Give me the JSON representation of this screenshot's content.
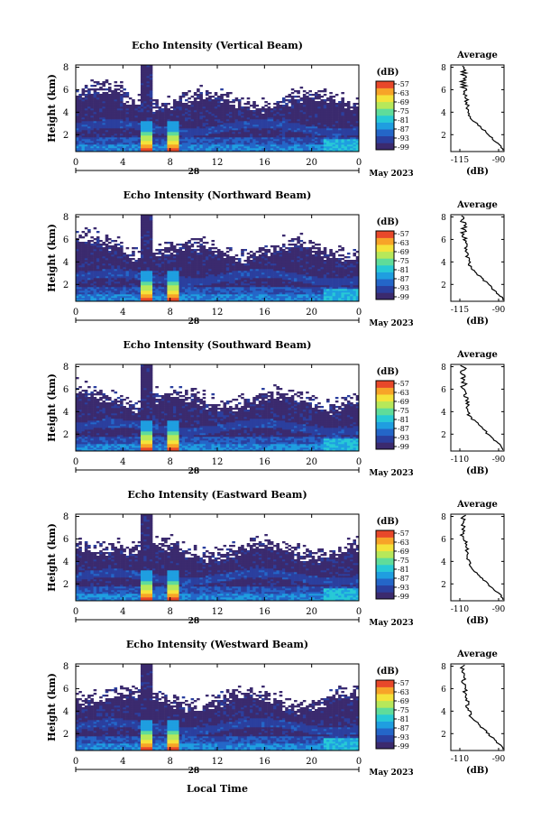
{
  "figure": {
    "date_label": "May 2023",
    "day_label": "28",
    "xlabel_bottom": "Local Time"
  },
  "chart_data": [
    {
      "type": "heatmap",
      "title": "Echo Intensity (Vertical Beam)",
      "ylabel": "Height (km)",
      "xticks": [
        "0",
        "4",
        "8",
        "12",
        "16",
        "20",
        "0"
      ],
      "yticks": [
        "2",
        "4",
        "6",
        "8"
      ],
      "xlim": [
        0,
        24
      ],
      "ylim": [
        0.5,
        8.2
      ],
      "colorbar": {
        "unit": "(dB)",
        "ticks": [
          "-57",
          "-63",
          "-69",
          "-75",
          "-81",
          "-87",
          "-93",
          "-99"
        ],
        "range": [
          -99,
          -57
        ]
      },
      "plumes": [
        6,
        8.3
      ],
      "profile": {
        "title": "Average",
        "xticks": [
          "-115",
          "-90"
        ],
        "xlabel": "(dB)",
        "yticks": [
          "2",
          "4",
          "6",
          "8"
        ]
      }
    },
    {
      "type": "heatmap",
      "title": "Echo Intensity (Northward Beam)",
      "ylabel": "Height (km)",
      "xticks": [
        "0",
        "4",
        "8",
        "12",
        "16",
        "20",
        "0"
      ],
      "yticks": [
        "2",
        "4",
        "6",
        "8"
      ],
      "xlim": [
        0,
        24
      ],
      "ylim": [
        0.5,
        8.2
      ],
      "colorbar": {
        "unit": "(dB)",
        "ticks": [
          "-57",
          "-63",
          "-69",
          "-75",
          "-81",
          "-87",
          "-93",
          "-99"
        ],
        "range": [
          -99,
          -57
        ]
      },
      "plumes": [
        6,
        8.3
      ],
      "profile": {
        "title": "Average",
        "xticks": [
          "-115",
          "-90"
        ],
        "xlabel": "(dB)",
        "yticks": [
          "2",
          "4",
          "6",
          "8"
        ]
      }
    },
    {
      "type": "heatmap",
      "title": "Echo Intensity (Southward Beam)",
      "ylabel": "Height (km)",
      "xticks": [
        "0",
        "4",
        "8",
        "12",
        "16",
        "20",
        "0"
      ],
      "yticks": [
        "2",
        "4",
        "6",
        "8"
      ],
      "xlim": [
        0,
        24
      ],
      "ylim": [
        0.5,
        8.2
      ],
      "colorbar": {
        "unit": "(dB)",
        "ticks": [
          "-57",
          "-63",
          "-69",
          "-75",
          "-81",
          "-87",
          "-93",
          "-99"
        ],
        "range": [
          -99,
          -57
        ]
      },
      "plumes": [
        6,
        8.3
      ],
      "profile": {
        "title": "Average",
        "xticks": [
          "-110",
          "-90"
        ],
        "xlabel": "(dB)",
        "yticks": [
          "2",
          "4",
          "6",
          "8"
        ]
      }
    },
    {
      "type": "heatmap",
      "title": "Echo Intensity (Eastward Beam)",
      "ylabel": "Height (km)",
      "xticks": [
        "0",
        "4",
        "8",
        "12",
        "16",
        "20",
        "0"
      ],
      "yticks": [
        "2",
        "4",
        "6",
        "8"
      ],
      "xlim": [
        0,
        24
      ],
      "ylim": [
        0.5,
        8.2
      ],
      "colorbar": {
        "unit": "(dB)",
        "ticks": [
          "-57",
          "-63",
          "-69",
          "-75",
          "-81",
          "-87",
          "-93",
          "-99"
        ],
        "range": [
          -99,
          -57
        ]
      },
      "plumes": [
        6,
        8.3
      ],
      "profile": {
        "title": "Average",
        "xticks": [
          "-110",
          "-90"
        ],
        "xlabel": "(dB)",
        "yticks": [
          "2",
          "4",
          "6",
          "8"
        ]
      }
    },
    {
      "type": "heatmap",
      "title": "Echo Intensity (Westward Beam)",
      "ylabel": "Height (km)",
      "xticks": [
        "0",
        "4",
        "8",
        "12",
        "16",
        "20",
        "0"
      ],
      "yticks": [
        "2",
        "4",
        "6",
        "8"
      ],
      "xlim": [
        0,
        24
      ],
      "ylim": [
        0.5,
        8.2
      ],
      "colorbar": {
        "unit": "(dB)",
        "ticks": [
          "-57",
          "-63",
          "-69",
          "-75",
          "-81",
          "-87",
          "-93",
          "-99"
        ],
        "range": [
          -99,
          -57
        ]
      },
      "plumes": [
        6,
        8.3
      ],
      "profile": {
        "title": "Average",
        "xticks": [
          "-110",
          "-90"
        ],
        "xlabel": "(dB)",
        "yticks": [
          "2",
          "4",
          "6",
          "8"
        ]
      }
    }
  ],
  "colormap": [
    "#3b2a6e",
    "#2b3f9e",
    "#2466c8",
    "#1f9ee0",
    "#27c9d6",
    "#5fdc9a",
    "#b7e85a",
    "#f4e33a",
    "#f7a428",
    "#e8482a"
  ]
}
